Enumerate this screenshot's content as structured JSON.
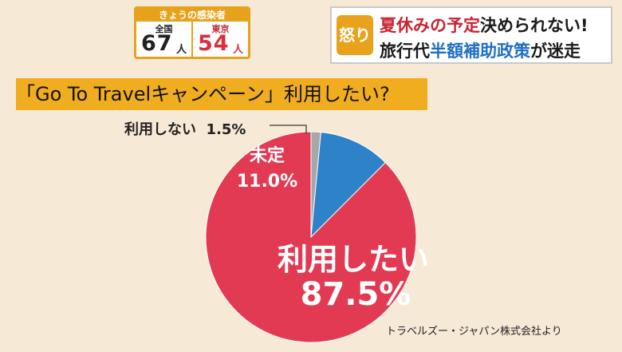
{
  "infections": {
    "title": "きょうの感染者",
    "national": {
      "label": "全国",
      "count": "67",
      "unit": "人"
    },
    "tokyo": {
      "label": "東京",
      "count": "54",
      "unit": "人"
    }
  },
  "headline": {
    "badge": "怒り",
    "line1_red": "夏休みの予定",
    "line1_dark": "決められない!",
    "line2_a": "旅行代",
    "line2_blue": "半額補助政策",
    "line2_b": "が迷走"
  },
  "colors": {
    "use": "#e23a52",
    "undecided": "#2e82c8",
    "not_use": "#a7a7a7",
    "accent": "#f0ad1f"
  },
  "chart_data": {
    "type": "pie",
    "title": "「Go To Travelキャンペーン」利用したい?",
    "slices": [
      {
        "label": "利用しない",
        "value": 1.5,
        "value_label": "1.5%"
      },
      {
        "label": "未定",
        "value": 11.0,
        "value_label": "11.0%"
      },
      {
        "label": "利用したい",
        "value": 87.5,
        "value_label": "87.5%"
      }
    ]
  },
  "source": "トラベルズー・ジャパン株式会社より"
}
